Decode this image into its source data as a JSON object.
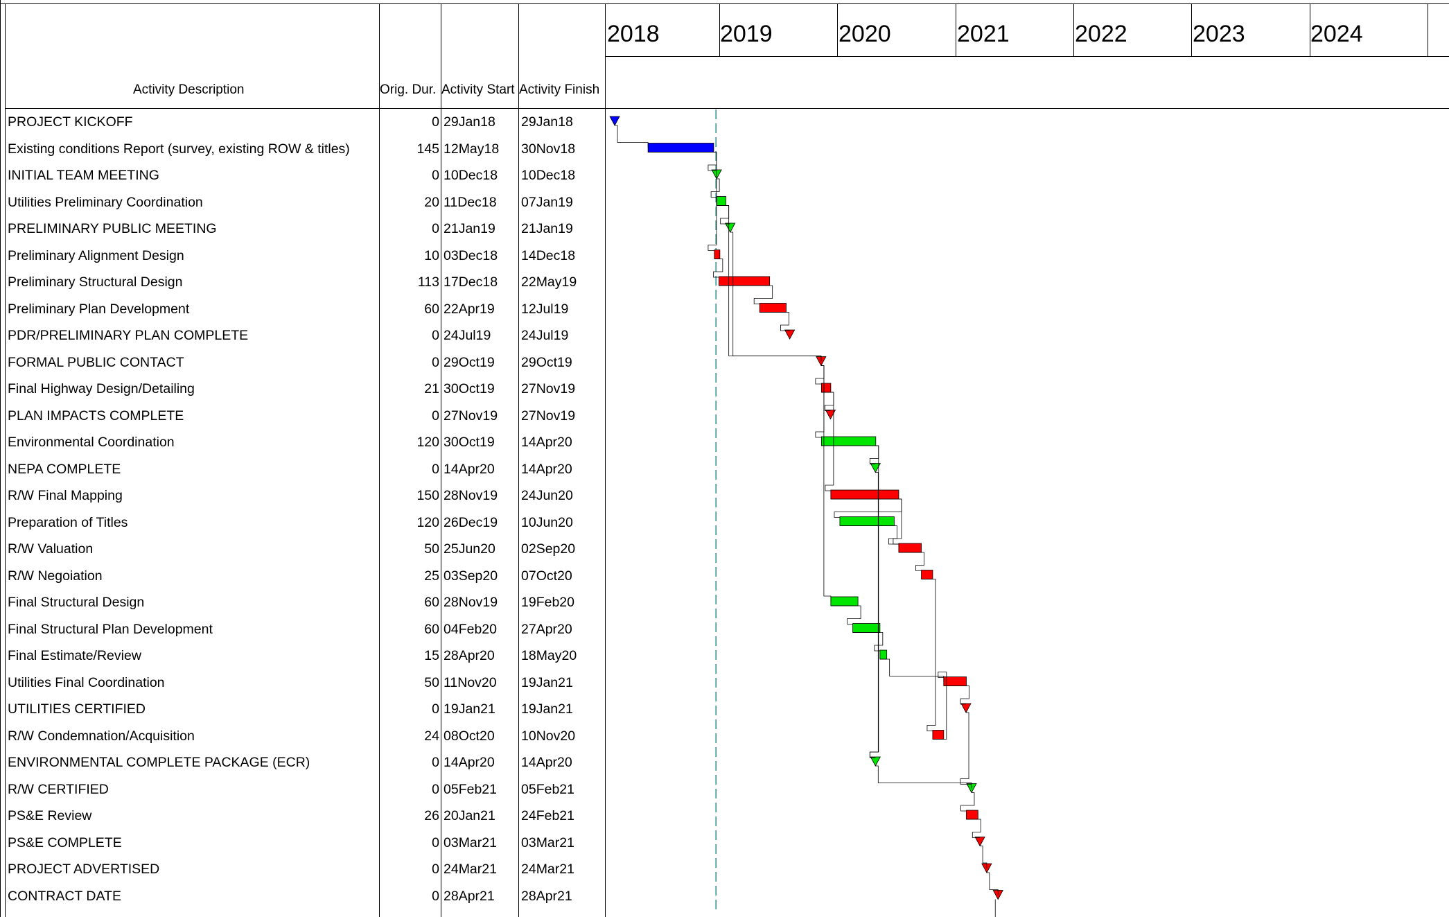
{
  "headers": {
    "description": "Activity Description",
    "duration": "Orig. Dur.",
    "start": "Activity Start",
    "finish": "Activity Finish"
  },
  "years": [
    "2018",
    "2019",
    "2020",
    "2021",
    "2022",
    "2023",
    "2024"
  ],
  "colors": {
    "critical": "#ff0000",
    "noncritical": "#00e600",
    "completed": "#0000ff",
    "dataDate": "#2e8b8b",
    "grid": "#000000"
  },
  "activities": [
    {
      "desc": "PROJECT KICKOFF",
      "dur": "0",
      "start": "29Jan18",
      "finish": "29Jan18",
      "type": "milestone",
      "color": "blue"
    },
    {
      "desc": "Existing conditions Report (survey, existing ROW & titles)",
      "dur": "145",
      "start": "12May18",
      "finish": "30Nov18",
      "type": "bar",
      "color": "blue"
    },
    {
      "desc": "INITIAL TEAM MEETING",
      "dur": "0",
      "start": "10Dec18",
      "finish": "10Dec18",
      "type": "milestone",
      "color": "green"
    },
    {
      "desc": "Utilities Preliminary Coordination",
      "dur": "20",
      "start": "11Dec18",
      "finish": "07Jan19",
      "type": "bar",
      "color": "green"
    },
    {
      "desc": "PRELIMINARY PUBLIC MEETING",
      "dur": "0",
      "start": "21Jan19",
      "finish": "21Jan19",
      "type": "milestone",
      "color": "green"
    },
    {
      "desc": "Preliminary Alignment Design",
      "dur": "10",
      "start": "03Dec18",
      "finish": "14Dec18",
      "type": "bar",
      "color": "red"
    },
    {
      "desc": "Preliminary Structural Design",
      "dur": "113",
      "start": "17Dec18",
      "finish": "22May19",
      "type": "bar",
      "color": "red"
    },
    {
      "desc": "Preliminary Plan Development",
      "dur": "60",
      "start": "22Apr19",
      "finish": "12Jul19",
      "type": "bar",
      "color": "red"
    },
    {
      "desc": "PDR/PRELIMINARY PLAN COMPLETE",
      "dur": "0",
      "start": "24Jul19",
      "finish": "24Jul19",
      "type": "milestone",
      "color": "red"
    },
    {
      "desc": "FORMAL PUBLIC CONTACT",
      "dur": "0",
      "start": "29Oct19",
      "finish": "29Oct19",
      "type": "milestone",
      "color": "red"
    },
    {
      "desc": "Final Highway Design/Detailing",
      "dur": "21",
      "start": "30Oct19",
      "finish": "27Nov19",
      "type": "bar",
      "color": "red"
    },
    {
      "desc": "PLAN  IMPACTS  COMPLETE",
      "dur": "0",
      "start": "27Nov19",
      "finish": "27Nov19",
      "type": "milestone",
      "color": "red"
    },
    {
      "desc": "Environmental Coordination",
      "dur": "120",
      "start": "30Oct19",
      "finish": "14Apr20",
      "type": "bar",
      "color": "green"
    },
    {
      "desc": "NEPA COMPLETE",
      "dur": "0",
      "start": "14Apr20",
      "finish": "14Apr20",
      "type": "milestone",
      "color": "green"
    },
    {
      "desc": "R/W Final Mapping",
      "dur": "150",
      "start": "28Nov19",
      "finish": "24Jun20",
      "type": "bar",
      "color": "red"
    },
    {
      "desc": "Preparation of Titles",
      "dur": "120",
      "start": "26Dec19",
      "finish": "10Jun20",
      "type": "bar",
      "color": "green"
    },
    {
      "desc": "R/W Valuation",
      "dur": "50",
      "start": "25Jun20",
      "finish": "02Sep20",
      "type": "bar",
      "color": "red"
    },
    {
      "desc": "R/W Negoiation",
      "dur": "25",
      "start": "03Sep20",
      "finish": "07Oct20",
      "type": "bar",
      "color": "red"
    },
    {
      "desc": "Final Structural Design",
      "dur": "60",
      "start": "28Nov19",
      "finish": "19Feb20",
      "type": "bar",
      "color": "green"
    },
    {
      "desc": "Final Structural Plan Development",
      "dur": "60",
      "start": "04Feb20",
      "finish": "27Apr20",
      "type": "bar",
      "color": "green"
    },
    {
      "desc": "Final Estimate/Review",
      "dur": "15",
      "start": "28Apr20",
      "finish": "18May20",
      "type": "bar",
      "color": "green"
    },
    {
      "desc": "Utilities Final Coordination",
      "dur": "50",
      "start": "11Nov20",
      "finish": "19Jan21",
      "type": "bar",
      "color": "red"
    },
    {
      "desc": "UTILITIES CERTIFIED",
      "dur": "0",
      "start": "19Jan21",
      "finish": "19Jan21",
      "type": "milestone",
      "color": "red"
    },
    {
      "desc": "R/W Condemnation/Acquisition",
      "dur": "24",
      "start": "08Oct20",
      "finish": "10Nov20",
      "type": "bar",
      "color": "red"
    },
    {
      "desc": "ENVIRONMENTAL  COMPLETE PACKAGE (ECR)",
      "dur": "0",
      "start": "14Apr20",
      "finish": "14Apr20",
      "type": "milestone",
      "color": "green"
    },
    {
      "desc": "R/W CERTIFIED",
      "dur": "0",
      "start": "05Feb21",
      "finish": "05Feb21",
      "type": "milestone",
      "color": "green"
    },
    {
      "desc": "PS&E Review",
      "dur": "26",
      "start": "20Jan21",
      "finish": "24Feb21",
      "type": "bar",
      "color": "red"
    },
    {
      "desc": "PS&E COMPLETE",
      "dur": "0",
      "start": "03Mar21",
      "finish": "03Mar21",
      "type": "milestone",
      "color": "red"
    },
    {
      "desc": "PROJECT ADVERTISED",
      "dur": "0",
      "start": "24Mar21",
      "finish": "24Mar21",
      "type": "milestone",
      "color": "red"
    },
    {
      "desc": "CONTRACT DATE",
      "dur": "0",
      "start": "28Apr21",
      "finish": "28Apr21",
      "type": "milestone",
      "color": "red"
    }
  ],
  "dataDate": "08Dec18"
}
